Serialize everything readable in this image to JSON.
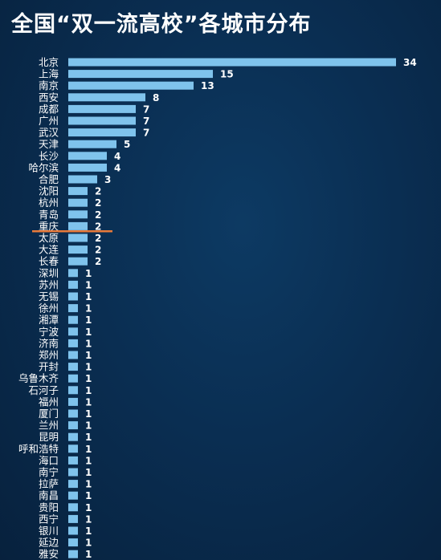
{
  "title": "全国“双一流高校”各城市分布",
  "colors": {
    "background": "#0a2e52",
    "bar": "#7fc3ec",
    "label_text": "#ffffff",
    "value_text": "#ffffff",
    "marker_line": "#e87a3a"
  },
  "chart_data": {
    "type": "bar",
    "orientation": "horizontal",
    "title": "全国“双一流高校”各城市分布",
    "categories": [
      "北京",
      "上海",
      "南京",
      "西安",
      "成都",
      "广州",
      "武汉",
      "天津",
      "长沙",
      "哈尔滨",
      "合肥",
      "沈阳",
      "杭州",
      "青岛",
      "重庆",
      "太原",
      "大连",
      "长春",
      "深圳",
      "苏州",
      "无锡",
      "徐州",
      "湘潭",
      "宁波",
      "济南",
      "郑州",
      "开封",
      "乌鲁木齐",
      "石河子",
      "福州",
      "厦门",
      "兰州",
      "昆明",
      "呼和浩特",
      "海口",
      "南宁",
      "拉萨",
      "南昌",
      "贵阳",
      "西宁",
      "银川",
      "延边",
      "雅安"
    ],
    "values": [
      34,
      15,
      13,
      8,
      7,
      7,
      7,
      5,
      4,
      4,
      3,
      2,
      2,
      2,
      2,
      2,
      2,
      2,
      1,
      1,
      1,
      1,
      1,
      1,
      1,
      1,
      1,
      1,
      1,
      1,
      1,
      1,
      1,
      1,
      1,
      1,
      1,
      1,
      1,
      1,
      1,
      1,
      1
    ],
    "xlim": [
      0,
      34
    ],
    "data_labels": true,
    "grid": false,
    "legend": "none",
    "annotation": "orange marker line between 重庆 and 太原"
  }
}
